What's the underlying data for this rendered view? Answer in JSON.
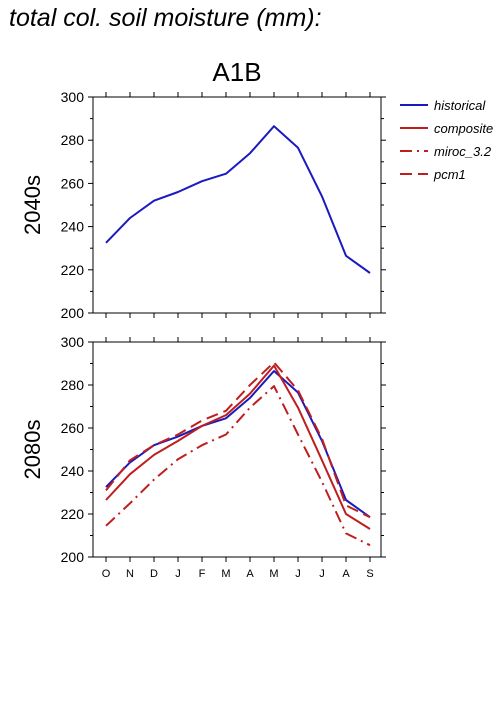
{
  "page_title": "total col. soil moisture (mm):",
  "colors": {
    "historical": "#1a1abf",
    "composite": "#bf1e1e",
    "axis": "#000000"
  },
  "chart_data": [
    {
      "type": "line",
      "title": "A1B",
      "ylabel": "2040s",
      "categories": [
        "O",
        "N",
        "D",
        "J",
        "F",
        "M",
        "A",
        "M",
        "J",
        "J",
        "A",
        "S"
      ],
      "ylim": [
        200,
        300
      ],
      "yticks": [
        200,
        220,
        240,
        260,
        280,
        300
      ],
      "grid": false,
      "series": [
        {
          "name": "historical",
          "color": "#1a1abf",
          "dash": "solid",
          "values": [
            232.5,
            244,
            252,
            256,
            261,
            264.5,
            274,
            286.5,
            276.5,
            254,
            226.5,
            218.5
          ]
        }
      ]
    },
    {
      "type": "line",
      "title": "",
      "ylabel": "2080s",
      "categories": [
        "O",
        "N",
        "D",
        "J",
        "F",
        "M",
        "A",
        "M",
        "J",
        "J",
        "A",
        "S"
      ],
      "ylim": [
        200,
        300
      ],
      "yticks": [
        200,
        220,
        240,
        260,
        280,
        300
      ],
      "grid": false,
      "series": [
        {
          "name": "historical",
          "color": "#1a1abf",
          "dash": "solid",
          "values": [
            232.5,
            244,
            252,
            256,
            261,
            264.5,
            274,
            286.5,
            276.5,
            254,
            226.5,
            218.5
          ]
        },
        {
          "name": "composite",
          "color": "#bf1e1e",
          "dash": "solid",
          "values": [
            226.5,
            238.5,
            247.5,
            254,
            261,
            266,
            276,
            289,
            269.5,
            245,
            220,
            213
          ]
        },
        {
          "name": "miroc_3.2",
          "color": "#bf1e1e",
          "dash": "dashdot",
          "values": [
            214.5,
            225,
            236,
            245.5,
            252,
            257,
            269.5,
            279.5,
            257,
            235,
            211,
            205.5
          ]
        },
        {
          "name": "pcm1",
          "color": "#bf1e1e",
          "dash": "dashed",
          "values": [
            231,
            245,
            252,
            257,
            263.5,
            268,
            280,
            290.5,
            277.5,
            255,
            224,
            218.5
          ]
        }
      ]
    }
  ],
  "legend": {
    "position": "right",
    "entries": [
      {
        "label": "historical",
        "color": "#1a1abf",
        "dash": "solid"
      },
      {
        "label": "composite",
        "color": "#bf1e1e",
        "dash": "solid"
      },
      {
        "label": "miroc_3.2",
        "color": "#bf1e1e",
        "dash": "dashdot"
      },
      {
        "label": "pcm1",
        "color": "#bf1e1e",
        "dash": "dashed"
      }
    ]
  }
}
